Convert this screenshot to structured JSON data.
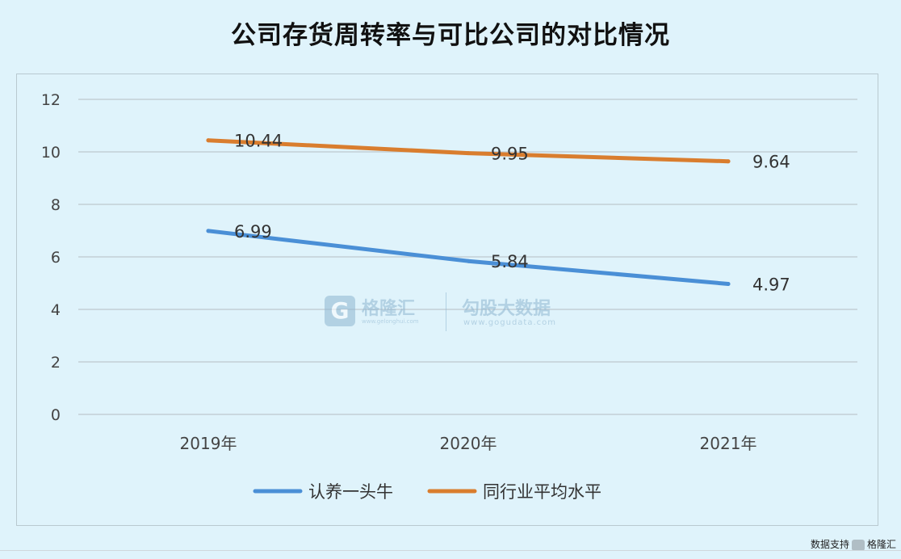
{
  "title": "公司存货周转率与可比公司的对比情况",
  "watermark": {
    "brand_left": "格隆汇",
    "site_left": "www.gelonghui.com",
    "brand_right": "勾股大数据",
    "site_right": "www.gogudata.com"
  },
  "credit": {
    "text": "数据支持",
    "brand": "格隆汇"
  },
  "chart_data": {
    "type": "line",
    "title": "公司存货周转率与可比公司的对比情况",
    "xlabel": "",
    "ylabel": "",
    "categories": [
      "2019年",
      "2020年",
      "2021年"
    ],
    "ylim": [
      0,
      12
    ],
    "yticks": [
      0,
      2,
      4,
      6,
      8,
      10,
      12
    ],
    "grid": true,
    "legend_position": "bottom",
    "series": [
      {
        "name": "认养一头牛",
        "values": [
          6.99,
          5.84,
          4.97
        ],
        "labels": [
          "6.99",
          "5.84",
          "4.97"
        ],
        "color": "#4a8fd6"
      },
      {
        "name": "同行业平均水平",
        "values": [
          10.44,
          9.95,
          9.64
        ],
        "labels": [
          "10.44",
          "9.95",
          "9.64"
        ],
        "color": "#d97d2e"
      }
    ]
  }
}
